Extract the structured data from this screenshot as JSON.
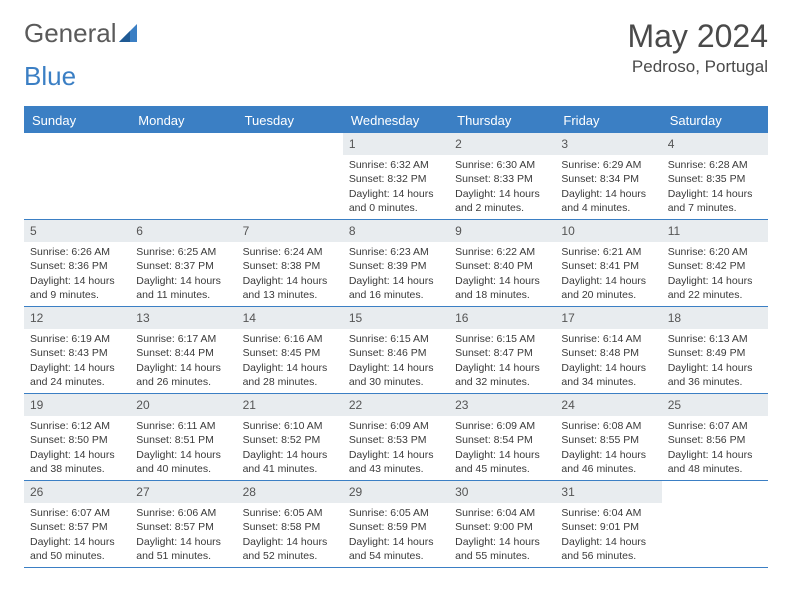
{
  "brand": {
    "word1": "General",
    "word2": "Blue"
  },
  "title": {
    "month": "May 2024",
    "location": "Pedroso, Portugal"
  },
  "colors": {
    "accent": "#3b7fc4",
    "header_bg": "#3b7fc4",
    "header_text": "#ffffff",
    "daynum_bg": "#e8ecef",
    "text": "#3a3a3a",
    "background": "#ffffff"
  },
  "day_names": [
    "Sunday",
    "Monday",
    "Tuesday",
    "Wednesday",
    "Thursday",
    "Friday",
    "Saturday"
  ],
  "weeks": [
    [
      {
        "n": "",
        "sunrise": "",
        "sunset": "",
        "daylight": ""
      },
      {
        "n": "",
        "sunrise": "",
        "sunset": "",
        "daylight": ""
      },
      {
        "n": "",
        "sunrise": "",
        "sunset": "",
        "daylight": ""
      },
      {
        "n": "1",
        "sunrise": "Sunrise: 6:32 AM",
        "sunset": "Sunset: 8:32 PM",
        "daylight": "Daylight: 14 hours and 0 minutes."
      },
      {
        "n": "2",
        "sunrise": "Sunrise: 6:30 AM",
        "sunset": "Sunset: 8:33 PM",
        "daylight": "Daylight: 14 hours and 2 minutes."
      },
      {
        "n": "3",
        "sunrise": "Sunrise: 6:29 AM",
        "sunset": "Sunset: 8:34 PM",
        "daylight": "Daylight: 14 hours and 4 minutes."
      },
      {
        "n": "4",
        "sunrise": "Sunrise: 6:28 AM",
        "sunset": "Sunset: 8:35 PM",
        "daylight": "Daylight: 14 hours and 7 minutes."
      }
    ],
    [
      {
        "n": "5",
        "sunrise": "Sunrise: 6:26 AM",
        "sunset": "Sunset: 8:36 PM",
        "daylight": "Daylight: 14 hours and 9 minutes."
      },
      {
        "n": "6",
        "sunrise": "Sunrise: 6:25 AM",
        "sunset": "Sunset: 8:37 PM",
        "daylight": "Daylight: 14 hours and 11 minutes."
      },
      {
        "n": "7",
        "sunrise": "Sunrise: 6:24 AM",
        "sunset": "Sunset: 8:38 PM",
        "daylight": "Daylight: 14 hours and 13 minutes."
      },
      {
        "n": "8",
        "sunrise": "Sunrise: 6:23 AM",
        "sunset": "Sunset: 8:39 PM",
        "daylight": "Daylight: 14 hours and 16 minutes."
      },
      {
        "n": "9",
        "sunrise": "Sunrise: 6:22 AM",
        "sunset": "Sunset: 8:40 PM",
        "daylight": "Daylight: 14 hours and 18 minutes."
      },
      {
        "n": "10",
        "sunrise": "Sunrise: 6:21 AM",
        "sunset": "Sunset: 8:41 PM",
        "daylight": "Daylight: 14 hours and 20 minutes."
      },
      {
        "n": "11",
        "sunrise": "Sunrise: 6:20 AM",
        "sunset": "Sunset: 8:42 PM",
        "daylight": "Daylight: 14 hours and 22 minutes."
      }
    ],
    [
      {
        "n": "12",
        "sunrise": "Sunrise: 6:19 AM",
        "sunset": "Sunset: 8:43 PM",
        "daylight": "Daylight: 14 hours and 24 minutes."
      },
      {
        "n": "13",
        "sunrise": "Sunrise: 6:17 AM",
        "sunset": "Sunset: 8:44 PM",
        "daylight": "Daylight: 14 hours and 26 minutes."
      },
      {
        "n": "14",
        "sunrise": "Sunrise: 6:16 AM",
        "sunset": "Sunset: 8:45 PM",
        "daylight": "Daylight: 14 hours and 28 minutes."
      },
      {
        "n": "15",
        "sunrise": "Sunrise: 6:15 AM",
        "sunset": "Sunset: 8:46 PM",
        "daylight": "Daylight: 14 hours and 30 minutes."
      },
      {
        "n": "16",
        "sunrise": "Sunrise: 6:15 AM",
        "sunset": "Sunset: 8:47 PM",
        "daylight": "Daylight: 14 hours and 32 minutes."
      },
      {
        "n": "17",
        "sunrise": "Sunrise: 6:14 AM",
        "sunset": "Sunset: 8:48 PM",
        "daylight": "Daylight: 14 hours and 34 minutes."
      },
      {
        "n": "18",
        "sunrise": "Sunrise: 6:13 AM",
        "sunset": "Sunset: 8:49 PM",
        "daylight": "Daylight: 14 hours and 36 minutes."
      }
    ],
    [
      {
        "n": "19",
        "sunrise": "Sunrise: 6:12 AM",
        "sunset": "Sunset: 8:50 PM",
        "daylight": "Daylight: 14 hours and 38 minutes."
      },
      {
        "n": "20",
        "sunrise": "Sunrise: 6:11 AM",
        "sunset": "Sunset: 8:51 PM",
        "daylight": "Daylight: 14 hours and 40 minutes."
      },
      {
        "n": "21",
        "sunrise": "Sunrise: 6:10 AM",
        "sunset": "Sunset: 8:52 PM",
        "daylight": "Daylight: 14 hours and 41 minutes."
      },
      {
        "n": "22",
        "sunrise": "Sunrise: 6:09 AM",
        "sunset": "Sunset: 8:53 PM",
        "daylight": "Daylight: 14 hours and 43 minutes."
      },
      {
        "n": "23",
        "sunrise": "Sunrise: 6:09 AM",
        "sunset": "Sunset: 8:54 PM",
        "daylight": "Daylight: 14 hours and 45 minutes."
      },
      {
        "n": "24",
        "sunrise": "Sunrise: 6:08 AM",
        "sunset": "Sunset: 8:55 PM",
        "daylight": "Daylight: 14 hours and 46 minutes."
      },
      {
        "n": "25",
        "sunrise": "Sunrise: 6:07 AM",
        "sunset": "Sunset: 8:56 PM",
        "daylight": "Daylight: 14 hours and 48 minutes."
      }
    ],
    [
      {
        "n": "26",
        "sunrise": "Sunrise: 6:07 AM",
        "sunset": "Sunset: 8:57 PM",
        "daylight": "Daylight: 14 hours and 50 minutes."
      },
      {
        "n": "27",
        "sunrise": "Sunrise: 6:06 AM",
        "sunset": "Sunset: 8:57 PM",
        "daylight": "Daylight: 14 hours and 51 minutes."
      },
      {
        "n": "28",
        "sunrise": "Sunrise: 6:05 AM",
        "sunset": "Sunset: 8:58 PM",
        "daylight": "Daylight: 14 hours and 52 minutes."
      },
      {
        "n": "29",
        "sunrise": "Sunrise: 6:05 AM",
        "sunset": "Sunset: 8:59 PM",
        "daylight": "Daylight: 14 hours and 54 minutes."
      },
      {
        "n": "30",
        "sunrise": "Sunrise: 6:04 AM",
        "sunset": "Sunset: 9:00 PM",
        "daylight": "Daylight: 14 hours and 55 minutes."
      },
      {
        "n": "31",
        "sunrise": "Sunrise: 6:04 AM",
        "sunset": "Sunset: 9:01 PM",
        "daylight": "Daylight: 14 hours and 56 minutes."
      },
      {
        "n": "",
        "sunrise": "",
        "sunset": "",
        "daylight": ""
      }
    ]
  ]
}
